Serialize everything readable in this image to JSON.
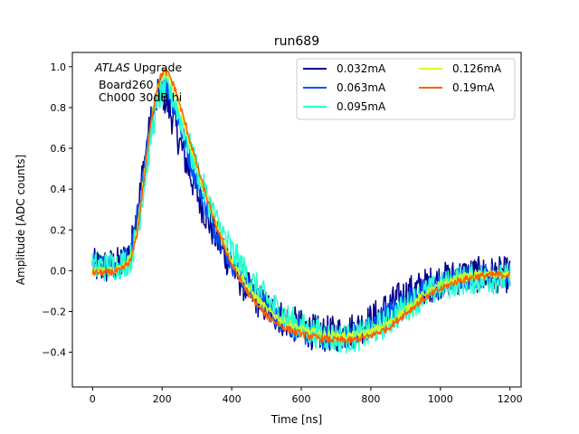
{
  "chart_data": {
    "type": "line",
    "title": "run689",
    "xlabel": "Time [ns]",
    "ylabel": "Amplitude [ADC counts]",
    "xlim": [
      -58,
      1232
    ],
    "ylim": [
      -0.57,
      1.07
    ],
    "xticks": [
      0,
      200,
      400,
      600,
      800,
      1000,
      1200
    ],
    "yticks": [
      -0.4,
      -0.2,
      0.0,
      0.2,
      0.4,
      0.6,
      0.8,
      1.0
    ],
    "xtick_labels": [
      "0",
      "200",
      "400",
      "600",
      "800",
      "1000",
      "1200"
    ],
    "ytick_labels": [
      "−0.4",
      "−0.2",
      "0.0",
      "0.2",
      "0.4",
      "0.6",
      "0.8",
      "1.0"
    ],
    "grid": false,
    "annotation": {
      "italic_word": "ATLAS",
      "rest": " Upgrade",
      "line2": "Board260",
      "line3": "Ch000 30dB hi"
    },
    "legend": {
      "placement": "top-right",
      "columns": 2
    },
    "series": [
      {
        "name": "0.032mA",
        "color": "#00008b",
        "noise": 0.09,
        "x": [
          0,
          40,
          80,
          110,
          130,
          150,
          170,
          190,
          200,
          210,
          230,
          260,
          300,
          350,
          400,
          450,
          500,
          550,
          600,
          650,
          700,
          750,
          800,
          850,
          900,
          950,
          1000,
          1050,
          1100,
          1150,
          1200
        ],
        "y": [
          0.02,
          0.02,
          0.03,
          0.1,
          0.3,
          0.55,
          0.75,
          0.86,
          0.88,
          0.84,
          0.75,
          0.58,
          0.38,
          0.18,
          0.02,
          -0.1,
          -0.18,
          -0.24,
          -0.28,
          -0.31,
          -0.31,
          -0.29,
          -0.25,
          -0.18,
          -0.12,
          -0.08,
          -0.05,
          -0.03,
          -0.02,
          -0.02,
          -0.02
        ]
      },
      {
        "name": "0.063mA",
        "color": "#0050ff",
        "noise": 0.06,
        "x": [
          0,
          40,
          80,
          110,
          130,
          150,
          170,
          190,
          205,
          220,
          240,
          270,
          310,
          350,
          400,
          450,
          500,
          550,
          600,
          650,
          700,
          750,
          800,
          850,
          900,
          950,
          1000,
          1050,
          1100,
          1150,
          1200
        ],
        "y": [
          0.02,
          0.02,
          0.03,
          0.09,
          0.28,
          0.52,
          0.74,
          0.88,
          0.92,
          0.88,
          0.78,
          0.6,
          0.39,
          0.21,
          0.04,
          -0.09,
          -0.18,
          -0.25,
          -0.3,
          -0.33,
          -0.33,
          -0.32,
          -0.28,
          -0.21,
          -0.15,
          -0.1,
          -0.07,
          -0.04,
          -0.03,
          -0.02,
          -0.02
        ]
      },
      {
        "name": "0.095mA",
        "color": "#29ffce",
        "noise": 0.075,
        "x": [
          0,
          40,
          80,
          110,
          130,
          150,
          170,
          190,
          210,
          230,
          250,
          280,
          320,
          360,
          400,
          450,
          500,
          550,
          600,
          650,
          700,
          750,
          800,
          850,
          900,
          950,
          1000,
          1050,
          1100,
          1150,
          1200
        ],
        "y": [
          0.02,
          0.02,
          0.03,
          0.06,
          0.2,
          0.44,
          0.68,
          0.84,
          0.9,
          0.86,
          0.76,
          0.6,
          0.4,
          0.23,
          0.1,
          -0.04,
          -0.14,
          -0.22,
          -0.28,
          -0.31,
          -0.33,
          -0.33,
          -0.3,
          -0.25,
          -0.18,
          -0.12,
          -0.08,
          -0.05,
          -0.04,
          -0.04,
          -0.04
        ]
      },
      {
        "name": "0.126mA",
        "color": "#ceff29",
        "noise": 0.022,
        "x": [
          0,
          40,
          80,
          110,
          130,
          150,
          170,
          190,
          205,
          220,
          240,
          270,
          310,
          350,
          400,
          450,
          500,
          550,
          600,
          650,
          700,
          750,
          800,
          850,
          900,
          950,
          1000,
          1050,
          1100,
          1150,
          1200
        ],
        "y": [
          0.0,
          0.0,
          0.01,
          0.06,
          0.22,
          0.5,
          0.76,
          0.92,
          0.97,
          0.95,
          0.86,
          0.68,
          0.45,
          0.25,
          0.05,
          -0.09,
          -0.19,
          -0.25,
          -0.29,
          -0.31,
          -0.32,
          -0.32,
          -0.3,
          -0.26,
          -0.19,
          -0.12,
          -0.07,
          -0.04,
          -0.02,
          -0.02,
          -0.02
        ]
      },
      {
        "name": "0.19mA",
        "color": "#ff5f00",
        "noise": 0.017,
        "x": [
          0,
          40,
          80,
          110,
          130,
          150,
          170,
          190,
          205,
          220,
          240,
          270,
          310,
          350,
          400,
          450,
          500,
          550,
          600,
          650,
          700,
          750,
          800,
          850,
          900,
          950,
          1000,
          1050,
          1100,
          1150,
          1200
        ],
        "y": [
          -0.01,
          -0.01,
          0.0,
          0.05,
          0.2,
          0.48,
          0.75,
          0.93,
          0.98,
          0.96,
          0.88,
          0.7,
          0.46,
          0.24,
          0.03,
          -0.12,
          -0.22,
          -0.28,
          -0.31,
          -0.33,
          -0.34,
          -0.34,
          -0.32,
          -0.28,
          -0.21,
          -0.14,
          -0.09,
          -0.05,
          -0.03,
          -0.02,
          -0.02
        ]
      }
    ]
  }
}
